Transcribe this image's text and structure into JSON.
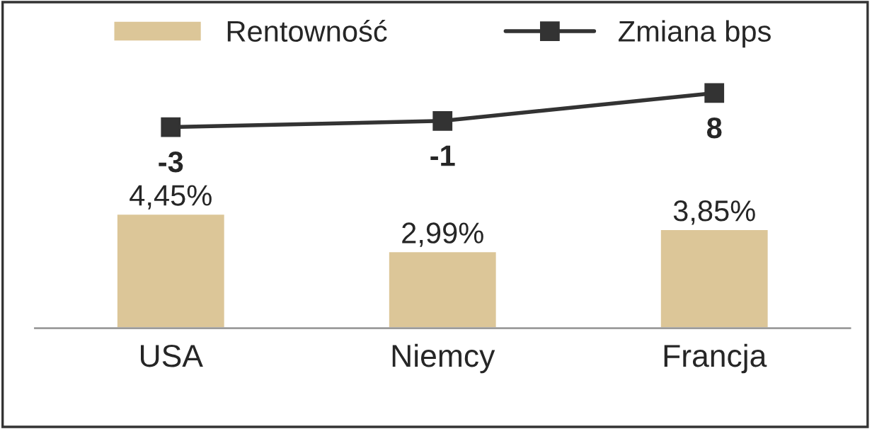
{
  "chart_data": {
    "type": "bar",
    "categories": [
      "USA",
      "Niemcy",
      "Francja"
    ],
    "series": [
      {
        "name": "Rentowność",
        "color": "#dcc698",
        "values": [
          4.45,
          2.99,
          3.85
        ],
        "value_labels": [
          "4,45%",
          "2,99%",
          "3,85%"
        ]
      },
      {
        "name": "Zmiana bps",
        "type": "line",
        "axis": "y2",
        "color": "#333333",
        "values": [
          -3,
          -1,
          8
        ],
        "value_labels": [
          "-3",
          "-1",
          "8"
        ]
      }
    ],
    "ylim": [
      0,
      12.5
    ],
    "y2lim": [
      -68,
      36
    ],
    "tick_labels": "x",
    "legend": "top",
    "marker": "square",
    "line_style": "solid",
    "grid": false
  }
}
